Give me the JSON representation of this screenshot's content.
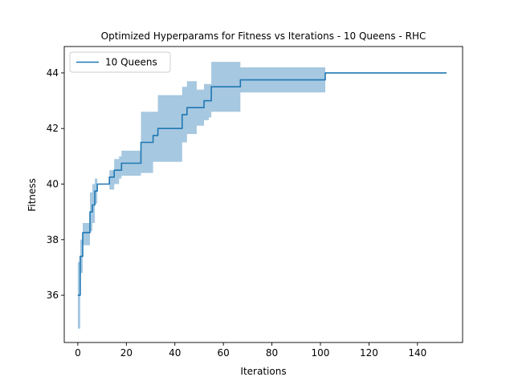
{
  "chart_data": {
    "type": "line",
    "title": "Optimized Hyperparams for Fitness vs Iterations - 10 Queens - RHC",
    "xlabel": "Iterations",
    "ylabel": "Fitness",
    "xlim": [
      -5.6,
      158.6
    ],
    "ylim": [
      34.3,
      44.95
    ],
    "xticks": [
      0,
      20,
      40,
      60,
      80,
      100,
      120,
      140
    ],
    "yticks": [
      36,
      38,
      40,
      42,
      44
    ],
    "grid": false,
    "legend": {
      "position": "top-left",
      "entries": [
        "10 Queens"
      ]
    },
    "colors": {
      "line": "#1f77b4",
      "band": "#a6c8e0"
    },
    "series": [
      {
        "name": "10 Queens",
        "x": [
          0,
          1,
          2,
          4,
          5,
          6,
          7,
          8,
          13,
          15,
          17,
          18,
          25,
          26,
          30,
          31,
          33,
          42,
          43,
          45,
          49,
          52,
          54,
          55,
          58,
          66,
          67,
          101,
          102,
          152
        ],
        "y": [
          36,
          37.4,
          38.25,
          38.25,
          39,
          39.25,
          39.75,
          40,
          40.25,
          40.5,
          40.5,
          40.75,
          40.75,
          41.5,
          41.5,
          41.75,
          42,
          42,
          42.5,
          42.75,
          42.75,
          43,
          43,
          43.5,
          43.5,
          43.5,
          43.75,
          43.75,
          44,
          44
        ],
        "band_low": [
          34.8,
          36.8,
          37.8,
          37.8,
          38.3,
          38.6,
          39.3,
          40,
          39.8,
          40.0,
          40.2,
          40.3,
          40.3,
          40.4,
          40.4,
          40.8,
          40.8,
          40.8,
          41.5,
          41.8,
          42.1,
          42.3,
          42.4,
          42.6,
          42.6,
          42.6,
          43.3,
          43.3,
          44,
          44
        ],
        "band_high": [
          37.2,
          38.0,
          38.6,
          38.6,
          39.7,
          40.0,
          40.2,
          40.0,
          40.5,
          40.9,
          41.0,
          41.2,
          41.2,
          42.6,
          42.6,
          42.6,
          43.2,
          43.2,
          43.5,
          43.7,
          43.4,
          43.6,
          43.6,
          44.4,
          44.4,
          44.4,
          44.2,
          44.2,
          44,
          44
        ]
      }
    ]
  }
}
